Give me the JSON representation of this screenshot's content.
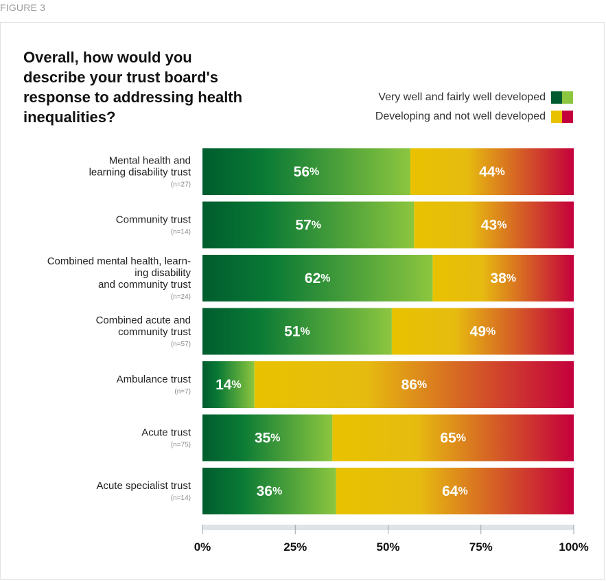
{
  "figure_label": "FIGURE 3",
  "title": "Overall, how would you describe your trust board's response to addressing health inequalities?",
  "colors": {
    "positive_dark": "#005c2e",
    "positive_light": "#8cc63f",
    "negative_yellow": "#e8c200",
    "negative_red": "#c4003c",
    "axis_track": "#dde3e6"
  },
  "chart_data": {
    "type": "bar",
    "orientation": "horizontal",
    "stacked": true,
    "percent": true,
    "legend_position": "top-right",
    "categories": [
      {
        "label_lines": [
          "Mental health and",
          "learning disability trust"
        ],
        "n": "(n=27)"
      },
      {
        "label_lines": [
          "Community trust"
        ],
        "n": "(n=14)"
      },
      {
        "label_lines": [
          "Combined mental health, learn-",
          "ing disability",
          "and community trust"
        ],
        "n": "(n=24)"
      },
      {
        "label_lines": [
          "Combined acute and",
          "community  trust"
        ],
        "n": "(n=57)"
      },
      {
        "label_lines": [
          "Ambulance trust"
        ],
        "n": "(n=7)"
      },
      {
        "label_lines": [
          "Acute trust"
        ],
        "n": "(n=75)"
      },
      {
        "label_lines": [
          "Acute specialist trust"
        ],
        "n": "(n=14)"
      }
    ],
    "series": [
      {
        "name": "Very well and fairly well developed",
        "values": [
          56,
          57,
          62,
          51,
          14,
          35,
          36
        ]
      },
      {
        "name": "Developing and not well developed",
        "values": [
          44,
          43,
          38,
          49,
          86,
          65,
          64
        ]
      }
    ],
    "xlim": [
      0,
      100
    ],
    "xticks": [
      "0%",
      "25%",
      "50%",
      "75%",
      "100%"
    ]
  }
}
